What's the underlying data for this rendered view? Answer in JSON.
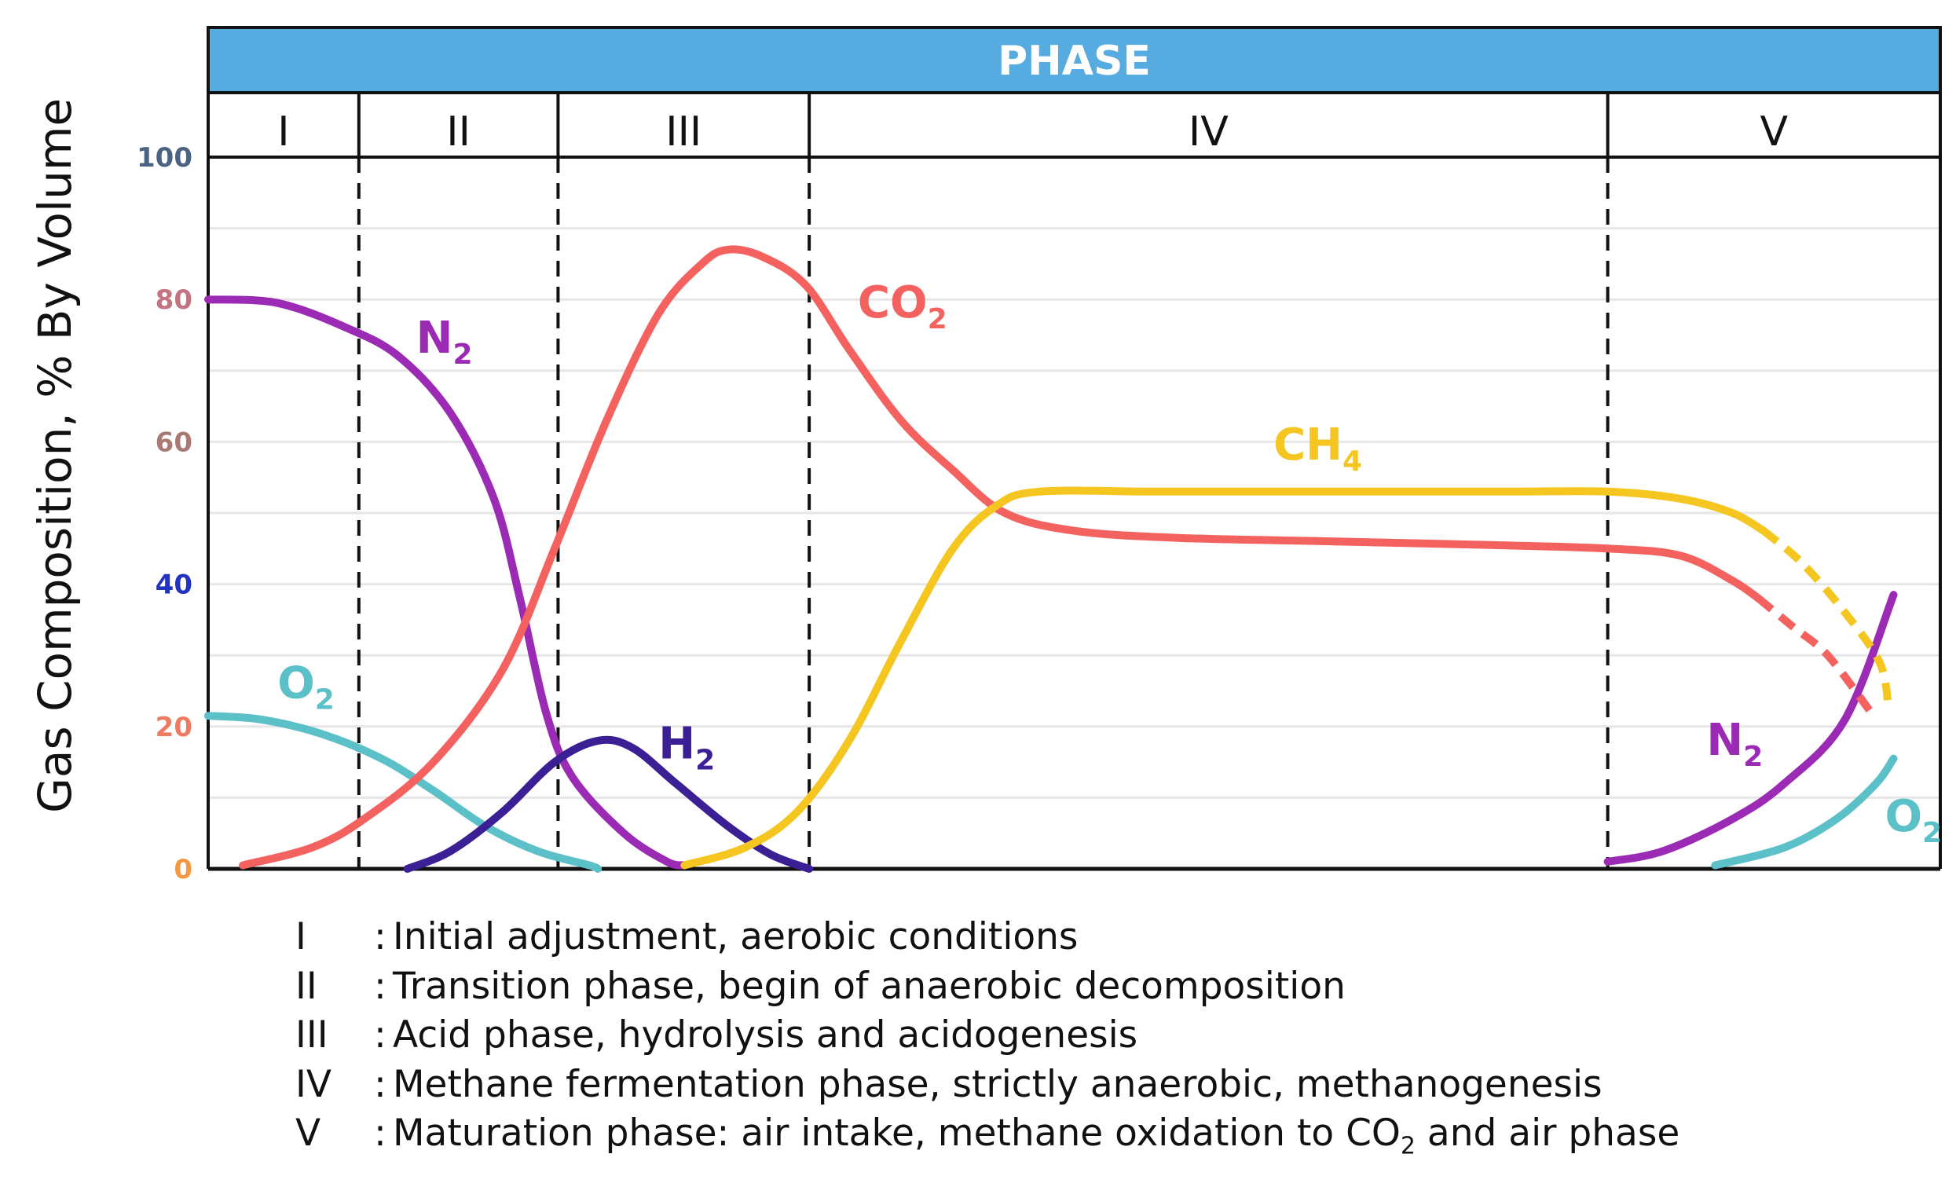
{
  "chart_data": {
    "type": "line",
    "title": "PHASE",
    "ylabel": "Gas Composition, % By Volume",
    "xlabel": "",
    "ylim": [
      0,
      100
    ],
    "xlim": [
      0,
      100
    ],
    "yticks": [
      {
        "value": 0,
        "label": "0",
        "color": "#f4973f"
      },
      {
        "value": 20,
        "label": "20",
        "color": "#f07a60"
      },
      {
        "value": 40,
        "label": "40",
        "color": "#2232c2"
      },
      {
        "value": 60,
        "label": "60",
        "color": "#a97a74"
      },
      {
        "value": 80,
        "label": "80",
        "color": "#c47480"
      },
      {
        "value": 100,
        "label": "100",
        "color": "#4b6282"
      }
    ],
    "phases": [
      {
        "label": "I",
        "start": 0,
        "end": 8.7
      },
      {
        "label": "II",
        "start": 8.7,
        "end": 20.2
      },
      {
        "label": "III",
        "start": 20.2,
        "end": 34.7
      },
      {
        "label": "IV",
        "start": 34.7,
        "end": 80.8
      },
      {
        "label": "V",
        "start": 80.8,
        "end": 100
      }
    ],
    "series": [
      {
        "name": "N2",
        "label": "N",
        "sub": "2",
        "color": "#9b2bb4",
        "points": [
          [
            0,
            80
          ],
          [
            4,
            79.5
          ],
          [
            8,
            76
          ],
          [
            11,
            72
          ],
          [
            14,
            64
          ],
          [
            16.5,
            52
          ],
          [
            18,
            38
          ],
          [
            19.5,
            22
          ],
          [
            21,
            13
          ],
          [
            24,
            5
          ],
          [
            26.5,
            1
          ],
          [
            27.5,
            0.5
          ]
        ]
      },
      {
        "name": "N2 (phase V)",
        "label": "N",
        "sub": "2",
        "color": "#9b2bb4",
        "points": [
          [
            80.8,
            1
          ],
          [
            84,
            2.5
          ],
          [
            88,
            7
          ],
          [
            91,
            12
          ],
          [
            94.5,
            21
          ],
          [
            97.3,
            38.5
          ]
        ]
      },
      {
        "name": "O2",
        "label": "O",
        "sub": "2",
        "color": "#5cc0c9",
        "points": [
          [
            0,
            21.5
          ],
          [
            3,
            21
          ],
          [
            6.5,
            19
          ],
          [
            10,
            15.5
          ],
          [
            13,
            11
          ],
          [
            16,
            6
          ],
          [
            19,
            2.5
          ],
          [
            22,
            0.5
          ],
          [
            22.5,
            0
          ]
        ]
      },
      {
        "name": "O2 (phase V)",
        "label": "O",
        "sub": "2",
        "color": "#5cc0c9",
        "points": [
          [
            87,
            0.5
          ],
          [
            91,
            3
          ],
          [
            94,
            7
          ],
          [
            96.3,
            12
          ],
          [
            97.3,
            15.5
          ]
        ]
      },
      {
        "name": "CO2",
        "label": "CO",
        "sub": "2",
        "color": "#f4625f",
        "points": [
          [
            2,
            0.5
          ],
          [
            6,
            3
          ],
          [
            9,
            7
          ],
          [
            13,
            15
          ],
          [
            17,
            28
          ],
          [
            20,
            45
          ],
          [
            23,
            63
          ],
          [
            26,
            78
          ],
          [
            28.5,
            85
          ],
          [
            30,
            87
          ],
          [
            32,
            86
          ],
          [
            34.5,
            82
          ],
          [
            37,
            73
          ],
          [
            40,
            63
          ],
          [
            43,
            56
          ],
          [
            46,
            50
          ],
          [
            50,
            47.5
          ],
          [
            56,
            46.5
          ],
          [
            65,
            46
          ],
          [
            74,
            45.5
          ],
          [
            80.8,
            45
          ],
          [
            85,
            44
          ],
          [
            88,
            40.5
          ],
          [
            89.5,
            38
          ]
        ]
      },
      {
        "name": "CO2 (dashed)",
        "label": "",
        "sub": "",
        "color": "#f4625f",
        "dashed": true,
        "points": [
          [
            89.5,
            38
          ],
          [
            91.5,
            34
          ],
          [
            93.5,
            30
          ],
          [
            96,
            22
          ]
        ]
      },
      {
        "name": "H2",
        "label": "H",
        "sub": "2",
        "color": "#3a1f95",
        "points": [
          [
            11.5,
            0
          ],
          [
            14,
            2.5
          ],
          [
            17,
            8
          ],
          [
            20,
            15
          ],
          [
            22.5,
            18
          ],
          [
            24.5,
            17
          ],
          [
            27,
            12
          ],
          [
            30,
            6
          ],
          [
            32.5,
            2
          ],
          [
            34.7,
            0
          ]
        ]
      },
      {
        "name": "CH4",
        "label": "CH",
        "sub": "4",
        "color": "#f5c520",
        "points": [
          [
            27.5,
            0.5
          ],
          [
            31,
            3
          ],
          [
            34,
            8
          ],
          [
            37,
            18
          ],
          [
            40,
            32
          ],
          [
            43,
            45
          ],
          [
            45.5,
            51
          ],
          [
            48,
            53
          ],
          [
            55,
            53
          ],
          [
            65,
            53
          ],
          [
            75,
            53
          ],
          [
            80.8,
            53
          ],
          [
            85,
            52
          ],
          [
            88,
            50
          ],
          [
            89.8,
            47.5
          ]
        ]
      },
      {
        "name": "CH4 (dashed)",
        "label": "",
        "sub": "",
        "color": "#f5c520",
        "dashed": true,
        "points": [
          [
            89.8,
            47.5
          ],
          [
            92,
            43
          ],
          [
            94.5,
            36
          ],
          [
            96.5,
            29
          ],
          [
            97,
            23
          ]
        ]
      }
    ],
    "annotations": [
      {
        "text": "N",
        "sub": "2",
        "color": "#9b2bb4",
        "x": 12,
        "y": 72.5
      },
      {
        "text": "O",
        "sub": "2",
        "color": "#5cc0c9",
        "x": 4,
        "y": 24
      },
      {
        "text": "CO",
        "sub": "2",
        "color": "#f4625f",
        "x": 37.5,
        "y": 77.5
      },
      {
        "text": "H",
        "sub": "2",
        "color": "#3a1f95",
        "x": 26,
        "y": 15.5
      },
      {
        "text": "CH",
        "sub": "4",
        "color": "#f5c520",
        "x": 61.5,
        "y": 57.5
      },
      {
        "text": "N",
        "sub": "2",
        "color": "#9b2bb4",
        "x": 86.5,
        "y": 16
      },
      {
        "text": "O",
        "sub": "2",
        "color": "#5cc0c9",
        "x": 96.8,
        "y": 5.3
      }
    ],
    "legend": [
      {
        "code": "I",
        "text": "Initial adjustment, aerobic conditions"
      },
      {
        "code": "II",
        "text": "Transition phase, begin of anaerobic decomposition"
      },
      {
        "code": "III",
        "text": "Acid phase, hydrolysis and acidogenesis"
      },
      {
        "code": "IV",
        "text": "Methane fermentation phase, strictly anaerobic, methanogenesis"
      },
      {
        "code": "V",
        "text": "Maturation phase: air intake, methane oxidation to CO",
        "sub": "2",
        "tail": " and air phase"
      }
    ],
    "header_color": "#56abe0",
    "grid": true
  }
}
